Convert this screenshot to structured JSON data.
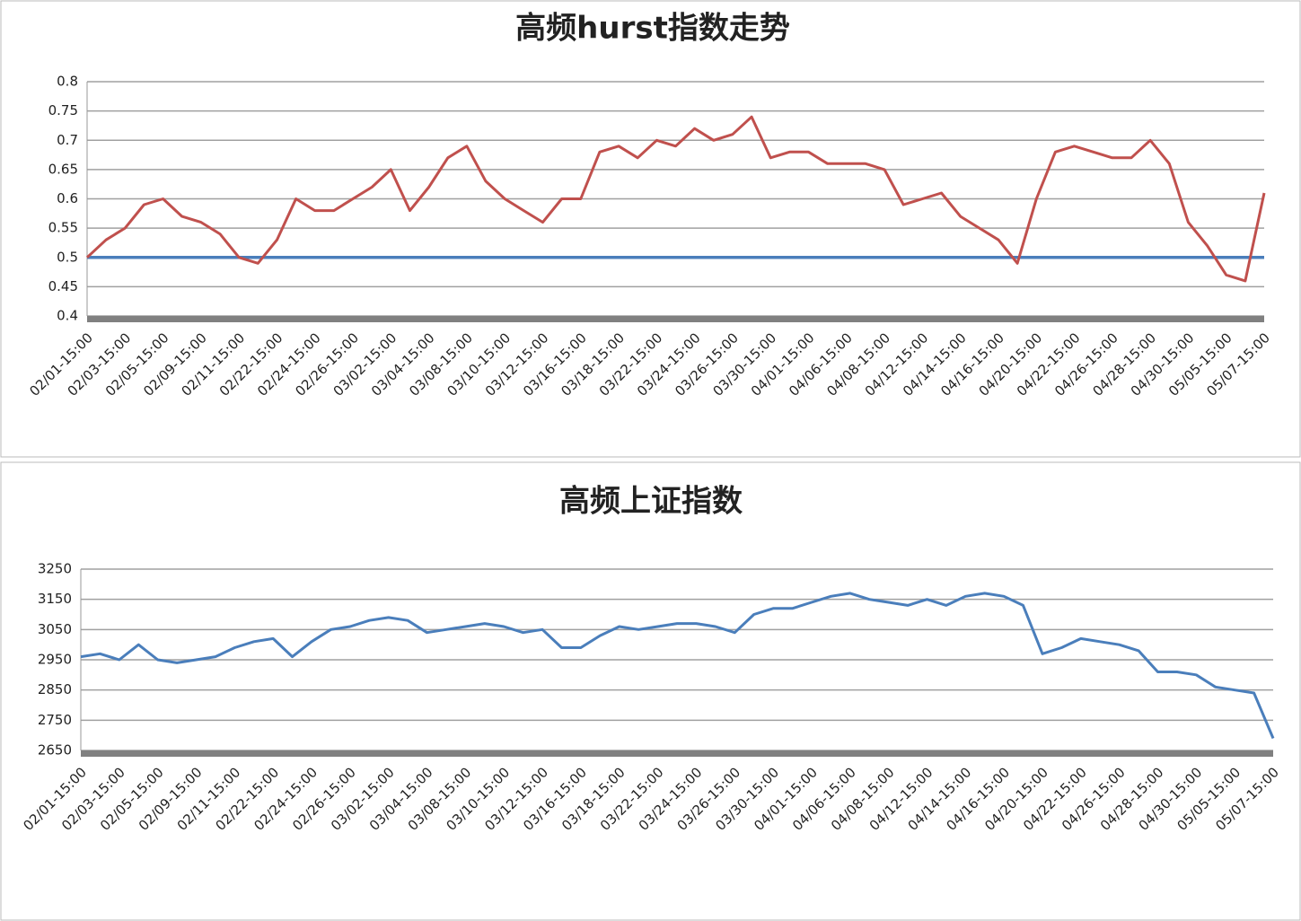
{
  "chart_data": [
    {
      "type": "line",
      "title": "高频hurst指数走势",
      "categories": [
        "02/01-15:00",
        null,
        "02/03-15:00",
        null,
        "02/05-15:00",
        null,
        "02/09-15:00",
        null,
        "02/11-15:00",
        null,
        "02/22-15:00",
        null,
        "02/24-15:00",
        null,
        "02/26-15:00",
        null,
        "03/02-15:00",
        null,
        "03/04-15:00",
        null,
        "03/08-15:00",
        null,
        "03/10-15:00",
        null,
        "03/12-15:00",
        null,
        "03/16-15:00",
        null,
        "03/18-15:00",
        null,
        "03/22-15:00",
        null,
        "03/24-15:00",
        null,
        "03/26-15:00",
        null,
        "03/30-15:00",
        null,
        "04/01-15:00",
        null,
        "04/06-15:00",
        null,
        "04/08-15:00",
        null,
        "04/12-15:00",
        null,
        "04/14-15:00",
        null,
        "04/16-15:00",
        null,
        "04/20-15:00",
        null,
        "04/22-15:00",
        null,
        "04/26-15:00",
        null,
        "04/28-15:00",
        null,
        "04/30-15:00",
        null,
        "05/05-15:00",
        null,
        "05/07-15:00"
      ],
      "series": [
        {
          "color": "#c0504d",
          "values": [
            0.5,
            0.53,
            0.55,
            0.59,
            0.6,
            0.57,
            0.56,
            0.54,
            0.5,
            0.49,
            0.53,
            0.6,
            0.58,
            0.58,
            0.6,
            0.62,
            0.65,
            0.58,
            0.62,
            0.67,
            0.69,
            0.63,
            0.6,
            0.58,
            0.56,
            0.6,
            0.6,
            0.68,
            0.69,
            0.67,
            0.7,
            0.69,
            0.72,
            0.7,
            0.71,
            0.74,
            0.67,
            0.68,
            0.68,
            0.66,
            0.66,
            0.66,
            0.65,
            0.59,
            0.6,
            0.61,
            0.57,
            0.55,
            0.53,
            0.49,
            0.6,
            0.68,
            0.69,
            0.68,
            0.67,
            0.67,
            0.7,
            0.66,
            0.56,
            0.52,
            0.47,
            0.46,
            0.61
          ]
        }
      ],
      "hline": {
        "value": 0.5,
        "color": "#4a7ebb"
      },
      "ylim": [
        0.4,
        0.8
      ],
      "yticks": [
        0.4,
        0.45,
        0.5,
        0.55,
        0.6,
        0.65,
        0.7,
        0.75,
        0.8
      ],
      "grid": true
    },
    {
      "type": "line",
      "title": "高频上证指数",
      "categories": [
        "02/01-15:00",
        null,
        "02/03-15:00",
        null,
        "02/05-15:00",
        null,
        "02/09-15:00",
        null,
        "02/11-15:00",
        null,
        "02/22-15:00",
        null,
        "02/24-15:00",
        null,
        "02/26-15:00",
        null,
        "03/02-15:00",
        null,
        "03/04-15:00",
        null,
        "03/08-15:00",
        null,
        "03/10-15:00",
        null,
        "03/12-15:00",
        null,
        "03/16-15:00",
        null,
        "03/18-15:00",
        null,
        "03/22-15:00",
        null,
        "03/24-15:00",
        null,
        "03/26-15:00",
        null,
        "03/30-15:00",
        null,
        "04/01-15:00",
        null,
        "04/06-15:00",
        null,
        "04/08-15:00",
        null,
        "04/12-15:00",
        null,
        "04/14-15:00",
        null,
        "04/16-15:00",
        null,
        "04/20-15:00",
        null,
        "04/22-15:00",
        null,
        "04/26-15:00",
        null,
        "04/28-15:00",
        null,
        "04/30-15:00",
        null,
        "05/05-15:00",
        null,
        "05/07-15:00"
      ],
      "series": [
        {
          "color": "#4a7ebb",
          "values": [
            2960,
            2970,
            2950,
            3000,
            2950,
            2940,
            2950,
            2960,
            2990,
            3010,
            3020,
            2960,
            3010,
            3050,
            3060,
            3080,
            3090,
            3080,
            3040,
            3050,
            3060,
            3070,
            3060,
            3040,
            3050,
            2990,
            2990,
            3030,
            3060,
            3050,
            3060,
            3070,
            3070,
            3060,
            3040,
            3100,
            3120,
            3120,
            3140,
            3160,
            3170,
            3150,
            3140,
            3130,
            3150,
            3130,
            3160,
            3170,
            3160,
            3130,
            2970,
            2990,
            3020,
            3010,
            3000,
            2980,
            2910,
            2910,
            2900,
            2860,
            2850,
            2840,
            2690
          ]
        }
      ],
      "ylim": [
        2650,
        3250
      ],
      "yticks": [
        2650,
        2750,
        2850,
        2950,
        3050,
        3150,
        3250
      ],
      "grid": true
    }
  ]
}
